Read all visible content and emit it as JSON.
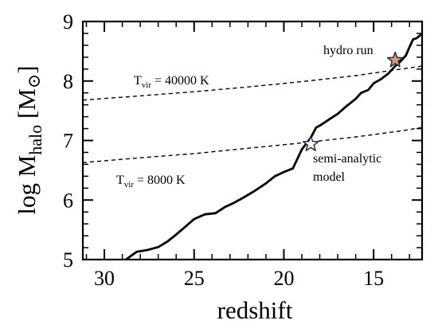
{
  "chart_data": {
    "type": "line",
    "xlabel": "redshift",
    "ylabel": {
      "main": "log M",
      "sub": "halo",
      "unit_open": " [M",
      "unit_sym": "⊙",
      "unit_close": "]"
    },
    "xlim": [
      31.2,
      12.3
    ],
    "ylim": [
      5,
      9
    ],
    "x_ticks": [
      30,
      25,
      20,
      15
    ],
    "x_tick_labels": [
      "30",
      "25",
      "20",
      "15"
    ],
    "y_ticks": [
      5,
      6,
      7,
      8,
      9
    ],
    "y_tick_labels": [
      "5",
      "6",
      "7",
      "8",
      "9"
    ],
    "grid": false,
    "series": [
      {
        "style": "solid",
        "color": "#000000",
        "x": [
          28.8,
          28.2,
          27.6,
          27.0,
          26.5,
          26.0,
          25.5,
          25.0,
          24.4,
          23.8,
          23.3,
          22.8,
          22.2,
          21.6,
          21.0,
          20.5,
          20.0,
          19.5,
          19.0,
          18.5,
          18.2,
          18.0,
          17.5,
          17.0,
          16.5,
          16.0,
          15.7,
          15.3,
          15.0,
          14.6,
          14.2,
          13.8,
          13.5,
          13.2,
          13.0,
          12.8,
          12.6,
          12.4,
          12.3
        ],
        "y": [
          5.0,
          5.13,
          5.16,
          5.21,
          5.3,
          5.42,
          5.55,
          5.68,
          5.76,
          5.78,
          5.88,
          5.95,
          6.05,
          6.16,
          6.28,
          6.4,
          6.47,
          6.53,
          6.85,
          7.05,
          7.22,
          7.25,
          7.35,
          7.45,
          7.58,
          7.7,
          7.8,
          7.85,
          7.96,
          8.03,
          8.12,
          8.25,
          8.33,
          8.43,
          8.57,
          8.7,
          8.72,
          8.77,
          8.78
        ]
      },
      {
        "style": "dashed",
        "color": "#000000",
        "x": [
          31.2,
          28,
          25,
          22,
          19,
          16,
          13.5,
          12.3
        ],
        "y": [
          7.68,
          7.75,
          7.82,
          7.9,
          7.99,
          8.09,
          8.2,
          8.25
        ]
      },
      {
        "style": "dashed",
        "color": "#000000",
        "x": [
          31.2,
          28,
          25,
          22,
          19,
          16,
          13.5,
          12.3
        ],
        "y": [
          6.63,
          6.71,
          6.78,
          6.87,
          6.96,
          7.06,
          7.16,
          7.22
        ]
      }
    ],
    "markers": [
      {
        "name": "semi-analytic",
        "x": 18.5,
        "y": 6.94,
        "fill": "#ffffff",
        "stroke": "#1c2c4a"
      },
      {
        "name": "hydro",
        "x": 13.8,
        "y": 8.35,
        "fill": "#e0986e",
        "stroke": "#1c2c4a"
      }
    ],
    "annotations": {
      "tvir_high": {
        "main": "T",
        "sub": "vir",
        "rest": " = 40000 K"
      },
      "tvir_low": {
        "main": "T",
        "sub": "vir",
        "rest": " = 8000 K"
      },
      "hydro": "hydro run",
      "semi_line1": "semi-analytic",
      "semi_line2": "model"
    }
  }
}
